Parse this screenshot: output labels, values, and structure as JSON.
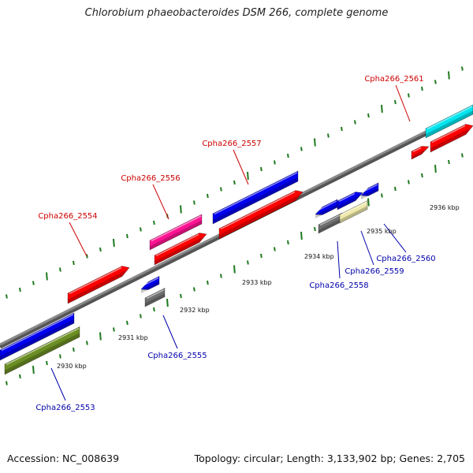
{
  "title": "Chlorobium phaeobacteroides DSM 266, complete genome",
  "footer": {
    "accession": "Accession: NC_008639",
    "topology": "Topology: circular; Length: 3,133,902 bp; Genes: 2,705"
  },
  "colors": {
    "backbone": "#8a8a8a",
    "tick": "#1f7a1f",
    "label_top": "#cc0000",
    "label_bottom": "#0000aa"
  },
  "scale_labels": [
    "2930 kbp",
    "2931 kbp",
    "2932 kbp",
    "2933 kbp",
    "2934 kbp",
    "2935 kbp",
    "2936 kbp"
  ],
  "genes": [
    {
      "id": "Cpha266_2553",
      "color": "#6b8e23",
      "strand": "forward",
      "side": "bottom"
    },
    {
      "id": "Cpha266_2554",
      "color": "#ff0000",
      "strand": "forward",
      "side": "top"
    },
    {
      "id": "Cpha266_2555",
      "color": "#707070",
      "strand": "forward",
      "side": "bottom"
    },
    {
      "id": "Cpha266_2556",
      "color": "#ff1493",
      "strand": "forward",
      "side": "top"
    },
    {
      "id": "Cpha266_2557",
      "color": "#0000ee",
      "strand": "forward",
      "side": "top"
    },
    {
      "id": "Cpha266_2558",
      "color": "#707070",
      "strand": "forward",
      "side": "bottom"
    },
    {
      "id": "Cpha266_2559",
      "color": "#eee8aa",
      "strand": "forward",
      "side": "bottom"
    },
    {
      "id": "Cpha266_2560",
      "color": "#0000ee",
      "strand": "reverse",
      "side": "bottom"
    },
    {
      "id": "Cpha266_2561",
      "color": "#ff0000",
      "strand": "forward",
      "side": "top"
    }
  ]
}
